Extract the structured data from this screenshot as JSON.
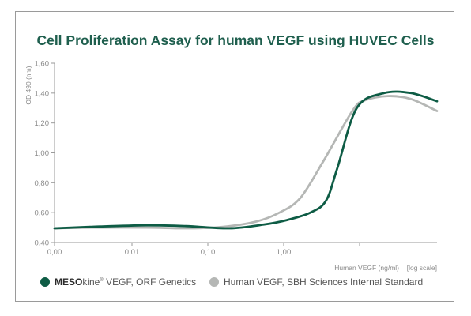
{
  "chart_data": {
    "type": "line",
    "title": "Cell Proliferation Assay for human VEGF using HUVEC Cells",
    "ylabel": "OD 490 (nm)",
    "xlabel": "Human VEGF (ng/ml)",
    "xlabel_note": "[log scale]",
    "x_scale": "log",
    "x_ticks": [
      "0,00",
      "0,01",
      "0,10",
      "1,00"
    ],
    "y_ticks": [
      "0,40",
      "0,60",
      "0,80",
      "1,00",
      "1,20",
      "1,40",
      "1,60"
    ],
    "ylim": [
      0.4,
      1.6
    ],
    "xlim": [
      0.001,
      100
    ],
    "grid": false,
    "legend_position": "bottom",
    "series": [
      {
        "legend_bold": "MESO",
        "legend_rest": "kine",
        "legend_sup": "®",
        "legend_tail": " VEGF, ORF Genetics",
        "color": "#0e5c45",
        "x": [
          0.001,
          0.003,
          0.015,
          0.05,
          0.18,
          0.5,
          1.0,
          2.0,
          3.2,
          4.5,
          8.0,
          18,
          40,
          100
        ],
        "y": [
          0.495,
          0.505,
          0.515,
          0.51,
          0.495,
          0.52,
          0.55,
          0.6,
          0.68,
          0.9,
          1.3,
          1.4,
          1.4,
          1.345
        ]
      },
      {
        "name": "Human VEGF, SBH Sciences Internal Standard",
        "color": "#b5b7b5",
        "x": [
          0.001,
          0.003,
          0.015,
          0.05,
          0.15,
          0.4,
          0.8,
          1.5,
          3.0,
          7.0,
          10,
          20,
          40,
          100
        ],
        "y": [
          0.495,
          0.5,
          0.5,
          0.495,
          0.505,
          0.54,
          0.6,
          0.7,
          0.95,
          1.28,
          1.35,
          1.38,
          1.36,
          1.28
        ]
      }
    ]
  }
}
